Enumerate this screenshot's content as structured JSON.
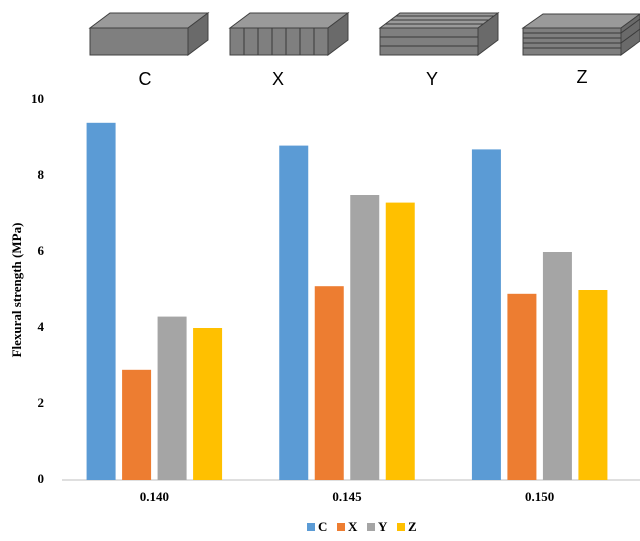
{
  "chart_data": {
    "type": "bar",
    "y_label": "Flexural strength (MPa)",
    "categories": [
      "0.140",
      "0.145",
      "0.150"
    ],
    "series": [
      {
        "name": "C",
        "color": "#5b9bd5",
        "values": [
          9.4,
          8.8,
          8.7
        ]
      },
      {
        "name": "X",
        "color": "#ed7d31",
        "values": [
          2.9,
          5.1,
          4.9
        ]
      },
      {
        "name": "Y",
        "color": "#a5a5a5",
        "values": [
          4.3,
          7.5,
          6.0
        ]
      },
      {
        "name": "Z",
        "color": "#ffc000",
        "values": [
          4.0,
          7.3,
          5.0
        ]
      }
    ],
    "ylim": [
      0,
      10
    ],
    "yticks": [
      0,
      2,
      4,
      6,
      8,
      10
    ],
    "grid": false,
    "legend": "bottom"
  }
}
